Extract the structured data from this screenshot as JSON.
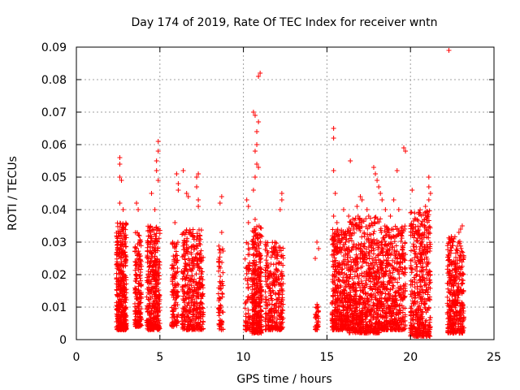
{
  "chart_data": {
    "type": "scatter",
    "title": "Day 174 of 2019, Rate Of TEC Index for receiver wntn",
    "xlabel": "GPS time / hours",
    "ylabel": "ROTI / TECUs",
    "xlim": [
      0,
      25
    ],
    "ylim": [
      0,
      0.09
    ],
    "x_ticks": [
      "0",
      "5",
      "10",
      "15",
      "20",
      "25"
    ],
    "y_ticks": [
      "0",
      "0.01",
      "0.02",
      "0.03",
      "0.04",
      "0.05",
      "0.06",
      "0.07",
      "0.08",
      "0.09"
    ],
    "x_tick_values": [
      0,
      5,
      10,
      15,
      20,
      25
    ],
    "y_tick_values": [
      0,
      0.01,
      0.02,
      0.03,
      0.04,
      0.05,
      0.06,
      0.07,
      0.08,
      0.09
    ],
    "grid": true,
    "marker": "+",
    "color": "#ff0000",
    "clusters": [
      {
        "x": [
          2.4,
          3.0
        ],
        "base": 0.003,
        "typ": 0.036,
        "n": 420
      },
      {
        "x": [
          3.5,
          3.9
        ],
        "base": 0.004,
        "typ": 0.033,
        "n": 180
      },
      {
        "x": [
          4.2,
          5.0
        ],
        "base": 0.003,
        "typ": 0.035,
        "n": 380
      },
      {
        "x": [
          5.7,
          6.1
        ],
        "base": 0.004,
        "typ": 0.03,
        "n": 120
      },
      {
        "x": [
          6.3,
          7.6
        ],
        "base": 0.003,
        "typ": 0.034,
        "n": 420
      },
      {
        "x": [
          8.5,
          8.8
        ],
        "base": 0.003,
        "typ": 0.03,
        "n": 70
      },
      {
        "x": [
          10.1,
          10.4
        ],
        "base": 0.003,
        "typ": 0.03,
        "n": 70
      },
      {
        "x": [
          10.5,
          11.1
        ],
        "base": 0.002,
        "typ": 0.035,
        "n": 330
      },
      {
        "x": [
          11.3,
          12.4
        ],
        "base": 0.003,
        "typ": 0.03,
        "n": 300
      },
      {
        "x": [
          14.3,
          14.5
        ],
        "base": 0.003,
        "typ": 0.011,
        "n": 40
      },
      {
        "x": [
          15.3,
          16.3
        ],
        "base": 0.003,
        "typ": 0.034,
        "n": 420
      },
      {
        "x": [
          16.3,
          18.2
        ],
        "base": 0.002,
        "typ": 0.038,
        "n": 700
      },
      {
        "x": [
          18.2,
          19.7
        ],
        "base": 0.003,
        "typ": 0.035,
        "n": 500
      },
      {
        "x": [
          20.0,
          21.2
        ],
        "base": 0.001,
        "typ": 0.04,
        "n": 460
      },
      {
        "x": [
          22.2,
          23.2
        ],
        "base": 0.002,
        "typ": 0.032,
        "n": 380
      }
    ],
    "outliers": [
      {
        "x": 2.6,
        "y": 0.056
      },
      {
        "x": 2.6,
        "y": 0.054
      },
      {
        "x": 2.6,
        "y": 0.05
      },
      {
        "x": 2.7,
        "y": 0.049
      },
      {
        "x": 2.6,
        "y": 0.042
      },
      {
        "x": 2.8,
        "y": 0.04
      },
      {
        "x": 3.7,
        "y": 0.04
      },
      {
        "x": 3.6,
        "y": 0.042
      },
      {
        "x": 4.5,
        "y": 0.045
      },
      {
        "x": 4.8,
        "y": 0.055
      },
      {
        "x": 4.8,
        "y": 0.052
      },
      {
        "x": 4.9,
        "y": 0.049
      },
      {
        "x": 4.9,
        "y": 0.061
      },
      {
        "x": 4.9,
        "y": 0.058
      },
      {
        "x": 4.7,
        "y": 0.04
      },
      {
        "x": 5.9,
        "y": 0.036
      },
      {
        "x": 6.0,
        "y": 0.051
      },
      {
        "x": 6.1,
        "y": 0.048
      },
      {
        "x": 6.1,
        "y": 0.046
      },
      {
        "x": 6.4,
        "y": 0.052
      },
      {
        "x": 6.6,
        "y": 0.045
      },
      {
        "x": 6.7,
        "y": 0.044
      },
      {
        "x": 7.2,
        "y": 0.05
      },
      {
        "x": 7.3,
        "y": 0.051
      },
      {
        "x": 7.2,
        "y": 0.047
      },
      {
        "x": 7.3,
        "y": 0.043
      },
      {
        "x": 7.3,
        "y": 0.041
      },
      {
        "x": 8.7,
        "y": 0.044
      },
      {
        "x": 8.6,
        "y": 0.042
      },
      {
        "x": 8.7,
        "y": 0.033
      },
      {
        "x": 10.2,
        "y": 0.043
      },
      {
        "x": 10.3,
        "y": 0.041
      },
      {
        "x": 10.3,
        "y": 0.036
      },
      {
        "x": 10.6,
        "y": 0.07
      },
      {
        "x": 10.7,
        "y": 0.069
      },
      {
        "x": 10.8,
        "y": 0.064
      },
      {
        "x": 10.9,
        "y": 0.067
      },
      {
        "x": 10.8,
        "y": 0.06
      },
      {
        "x": 10.7,
        "y": 0.058
      },
      {
        "x": 10.8,
        "y": 0.054
      },
      {
        "x": 10.9,
        "y": 0.053
      },
      {
        "x": 10.7,
        "y": 0.05
      },
      {
        "x": 10.6,
        "y": 0.046
      },
      {
        "x": 10.7,
        "y": 0.037
      },
      {
        "x": 10.9,
        "y": 0.081
      },
      {
        "x": 11.0,
        "y": 0.082
      },
      {
        "x": 12.3,
        "y": 0.045
      },
      {
        "x": 12.3,
        "y": 0.043
      },
      {
        "x": 12.2,
        "y": 0.04
      },
      {
        "x": 14.4,
        "y": 0.03
      },
      {
        "x": 14.5,
        "y": 0.028
      },
      {
        "x": 14.3,
        "y": 0.025
      },
      {
        "x": 15.4,
        "y": 0.065
      },
      {
        "x": 15.4,
        "y": 0.062
      },
      {
        "x": 15.4,
        "y": 0.052
      },
      {
        "x": 15.5,
        "y": 0.045
      },
      {
        "x": 15.4,
        "y": 0.038
      },
      {
        "x": 15.6,
        "y": 0.036
      },
      {
        "x": 16.0,
        "y": 0.04
      },
      {
        "x": 16.3,
        "y": 0.038
      },
      {
        "x": 16.4,
        "y": 0.055
      },
      {
        "x": 16.8,
        "y": 0.041
      },
      {
        "x": 17.0,
        "y": 0.044
      },
      {
        "x": 17.1,
        "y": 0.043
      },
      {
        "x": 17.4,
        "y": 0.04
      },
      {
        "x": 17.5,
        "y": 0.038
      },
      {
        "x": 17.8,
        "y": 0.053
      },
      {
        "x": 17.9,
        "y": 0.051
      },
      {
        "x": 18.0,
        "y": 0.049
      },
      {
        "x": 18.1,
        "y": 0.047
      },
      {
        "x": 18.2,
        "y": 0.045
      },
      {
        "x": 18.3,
        "y": 0.043
      },
      {
        "x": 18.5,
        "y": 0.04
      },
      {
        "x": 18.8,
        "y": 0.038
      },
      {
        "x": 19.2,
        "y": 0.052
      },
      {
        "x": 19.0,
        "y": 0.043
      },
      {
        "x": 19.3,
        "y": 0.04
      },
      {
        "x": 19.6,
        "y": 0.059
      },
      {
        "x": 19.7,
        "y": 0.058
      },
      {
        "x": 20.1,
        "y": 0.046
      },
      {
        "x": 20.1,
        "y": 0.033
      },
      {
        "x": 20.9,
        "y": 0.041
      },
      {
        "x": 21.0,
        "y": 0.039
      },
      {
        "x": 21.1,
        "y": 0.05
      },
      {
        "x": 21.1,
        "y": 0.047
      },
      {
        "x": 21.2,
        "y": 0.045
      },
      {
        "x": 21.1,
        "y": 0.043
      },
      {
        "x": 22.3,
        "y": 0.089
      },
      {
        "x": 22.3,
        "y": 0.03
      },
      {
        "x": 22.5,
        "y": 0.029
      },
      {
        "x": 22.6,
        "y": 0.031
      },
      {
        "x": 22.9,
        "y": 0.033
      },
      {
        "x": 23.0,
        "y": 0.034
      },
      {
        "x": 23.1,
        "y": 0.035
      }
    ]
  }
}
